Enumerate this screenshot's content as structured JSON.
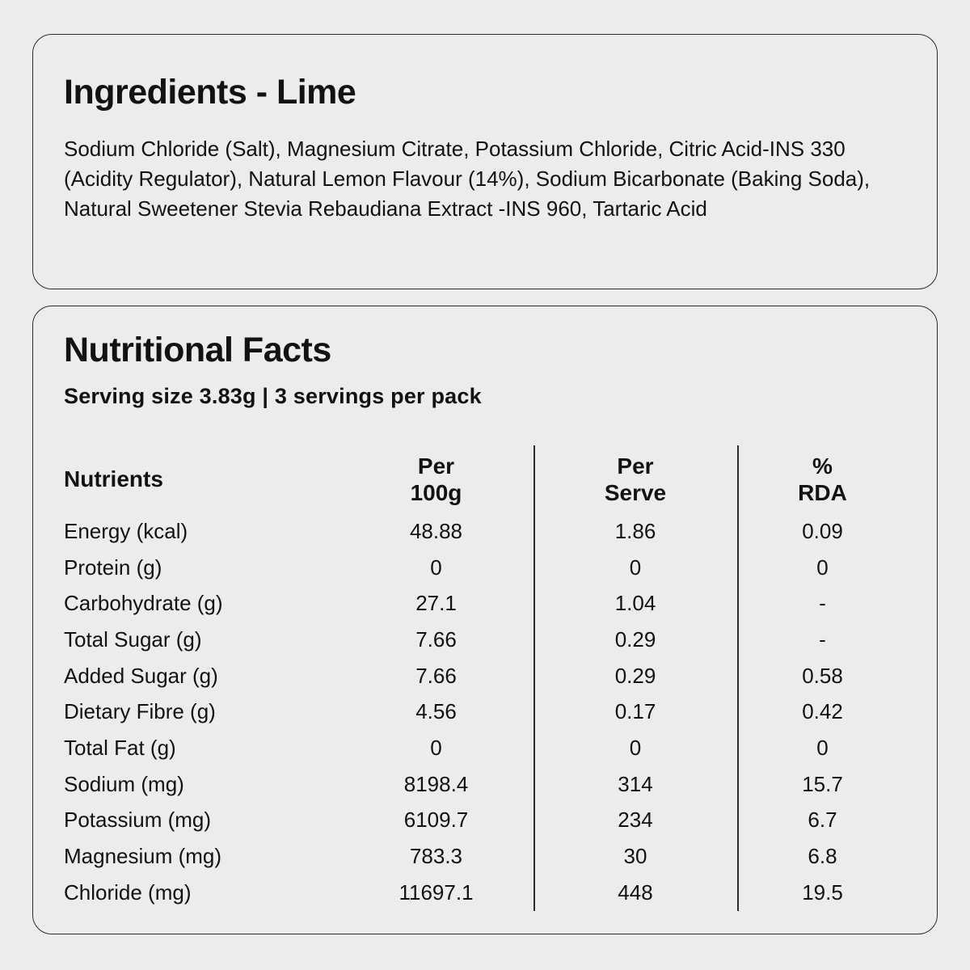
{
  "colors": {
    "background": "#ececec",
    "card_border": "#2d2d2d",
    "text": "#121212"
  },
  "ingredients_card": {
    "title": "Ingredients - Lime",
    "body": "Sodium Chloride (Salt), Magnesium Citrate, Potassium Chloride, Citric Acid-INS 330 (Acidity Regulator), Natural Lemon Flavour (14%), Sodium Bicarbonate (Baking Soda), Natural Sweetener Stevia Rebaudiana Extract -INS 960, Tartaric Acid"
  },
  "nutrition_card": {
    "title": "Nutritional Facts",
    "serving_info": "Serving size 3.83g | 3 servings per pack",
    "table": {
      "headers": {
        "nutrients": "Nutrients",
        "per_100g_line1": "Per",
        "per_100g_line2": "100g",
        "per_serve_line1": "Per",
        "per_serve_line2": "Serve",
        "rda_line1": "%",
        "rda_line2": "RDA"
      },
      "rows": [
        {
          "label": "Energy (kcal)",
          "per_100g": "48.88",
          "per_serve": "1.86",
          "rda_percent": "0.09"
        },
        {
          "label": "Protein (g)",
          "per_100g": "0",
          "per_serve": "0",
          "rda_percent": "0"
        },
        {
          "label": "Carbohydrate (g)",
          "per_100g": "27.1",
          "per_serve": "1.04",
          "rda_percent": "-"
        },
        {
          "label": "Total Sugar (g)",
          "per_100g": "7.66",
          "per_serve": "0.29",
          "rda_percent": "-"
        },
        {
          "label": "Added Sugar (g)",
          "per_100g": "7.66",
          "per_serve": "0.29",
          "rda_percent": "0.58"
        },
        {
          "label": "Dietary Fibre (g)",
          "per_100g": "4.56",
          "per_serve": "0.17",
          "rda_percent": "0.42"
        },
        {
          "label": "Total Fat (g)",
          "per_100g": "0",
          "per_serve": "0",
          "rda_percent": "0"
        },
        {
          "label": "Sodium (mg)",
          "per_100g": "8198.4",
          "per_serve": "314",
          "rda_percent": "15.7"
        },
        {
          "label": "Potassium (mg)",
          "per_100g": "6109.7",
          "per_serve": "234",
          "rda_percent": "6.7"
        },
        {
          "label": "Magnesium (mg)",
          "per_100g": "783.3",
          "per_serve": "30",
          "rda_percent": "6.8"
        },
        {
          "label": "Chloride (mg)",
          "per_100g": "11697.1",
          "per_serve": "448",
          "rda_percent": "19.5"
        }
      ]
    }
  }
}
